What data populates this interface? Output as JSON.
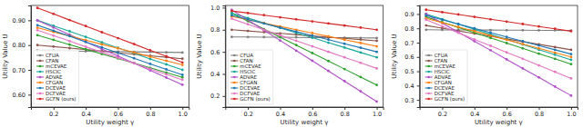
{
  "chart_data": [
    {
      "type": "line",
      "x_label": "Utility weight γ",
      "y_label": "Utility Value U",
      "x": [
        0.1,
        0.2,
        0.3,
        0.4,
        0.5,
        0.6,
        0.7,
        0.8,
        0.9,
        1.0
      ],
      "xlim": [
        0.06,
        1.04
      ],
      "xticks": [
        0.2,
        0.4,
        0.6,
        0.8,
        {
          "value": 1.0,
          "label": "1.0"
        }
      ],
      "ylim": [
        0.55,
        0.96
      ],
      "yticks": [
        {
          "value": 0.6,
          "label": "0.60"
        },
        {
          "value": 0.7,
          "label": "0.70"
        },
        {
          "value": 0.8,
          "label": "0.80"
        },
        {
          "value": 0.9,
          "label": "0.90"
        }
      ],
      "grid": false,
      "legend": "lower left",
      "series": [
        {
          "name": "CFUA",
          "color": "#7f7f7f",
          "marker": "o",
          "values": [
            0.778,
            0.777,
            0.776,
            0.775,
            0.774,
            0.774,
            0.773,
            0.772,
            0.771,
            0.77
          ]
        },
        {
          "name": "CFAN",
          "color": "#8c564b",
          "marker": "o",
          "values": [
            0.8,
            0.794,
            0.788,
            0.782,
            0.776,
            0.769,
            0.763,
            0.757,
            0.751,
            0.745
          ]
        },
        {
          "name": "mCEVAE",
          "color": "#2ca02c",
          "marker": "o",
          "values": [
            0.84,
            0.821,
            0.802,
            0.783,
            0.764,
            0.746,
            0.727,
            0.708,
            0.689,
            0.67
          ]
        },
        {
          "name": "HSCIC",
          "color": "#17a89a",
          "marker": "o",
          "values": [
            0.9,
            0.878,
            0.856,
            0.833,
            0.811,
            0.789,
            0.767,
            0.744,
            0.722,
            0.7
          ]
        },
        {
          "name": "ADVAE",
          "color": "#b04fc9",
          "marker": "o",
          "values": [
            0.9,
            0.871,
            0.842,
            0.813,
            0.784,
            0.756,
            0.727,
            0.698,
            0.669,
            0.64
          ]
        },
        {
          "name": "CFGAN",
          "color": "#ff7f0e",
          "marker": "o",
          "values": [
            0.87,
            0.853,
            0.837,
            0.82,
            0.803,
            0.787,
            0.77,
            0.753,
            0.737,
            0.72
          ]
        },
        {
          "name": "DCEVAE",
          "color": "#1f77b4",
          "marker": "o",
          "values": [
            0.88,
            0.858,
            0.836,
            0.813,
            0.791,
            0.769,
            0.747,
            0.724,
            0.702,
            0.68
          ]
        },
        {
          "name": "DCFVAE",
          "color": "#e377c2",
          "marker": "o",
          "values": [
            0.86,
            0.838,
            0.816,
            0.793,
            0.771,
            0.749,
            0.727,
            0.704,
            0.682,
            0.66
          ]
        },
        {
          "name": "GCFN (ours)",
          "color": "#d62728",
          "marker": "o",
          "values": [
            0.95,
            0.926,
            0.901,
            0.877,
            0.852,
            0.828,
            0.804,
            0.779,
            0.755,
            0.73
          ]
        }
      ]
    },
    {
      "type": "line",
      "x_label": "Utility weight γ",
      "y_label": "Utility Value U",
      "x": [
        0.1,
        0.2,
        0.3,
        0.4,
        0.5,
        0.6,
        0.7,
        0.8,
        0.9,
        1.0
      ],
      "xlim": [
        0.06,
        1.04
      ],
      "xticks": [
        0.2,
        0.4,
        0.6,
        0.8,
        {
          "value": 1.0,
          "label": "1.0"
        }
      ],
      "ylim": [
        0.1,
        1.02
      ],
      "yticks": [
        0.2,
        0.4,
        0.6,
        0.8,
        {
          "value": 1.0,
          "label": "1.0"
        }
      ],
      "grid": false,
      "legend": "lower left",
      "series": [
        {
          "name": "CFUA",
          "color": "#7f7f7f",
          "marker": "o",
          "values": [
            0.735,
            0.734,
            0.733,
            0.732,
            0.731,
            0.729,
            0.728,
            0.727,
            0.726,
            0.725
          ]
        },
        {
          "name": "CFAN",
          "color": "#8c564b",
          "marker": "o",
          "values": [
            0.8,
            0.789,
            0.778,
            0.767,
            0.756,
            0.744,
            0.733,
            0.722,
            0.711,
            0.7
          ]
        },
        {
          "name": "mCEVAE",
          "color": "#2ca02c",
          "marker": "o",
          "values": [
            0.95,
            0.878,
            0.806,
            0.733,
            0.661,
            0.589,
            0.517,
            0.444,
            0.372,
            0.3
          ]
        },
        {
          "name": "HSCIC",
          "color": "#17a89a",
          "marker": "o",
          "values": [
            0.95,
            0.906,
            0.861,
            0.817,
            0.772,
            0.728,
            0.683,
            0.639,
            0.594,
            0.55
          ]
        },
        {
          "name": "ADVAE",
          "color": "#b04fc9",
          "marker": "o",
          "values": [
            0.98,
            0.888,
            0.796,
            0.703,
            0.611,
            0.519,
            0.427,
            0.334,
            0.242,
            0.15
          ]
        },
        {
          "name": "CFGAN",
          "color": "#ff7f0e",
          "marker": "o",
          "values": [
            0.92,
            0.89,
            0.86,
            0.83,
            0.8,
            0.77,
            0.74,
            0.71,
            0.68,
            0.65
          ]
        },
        {
          "name": "DCEVAE",
          "color": "#1f77b4",
          "marker": "o",
          "values": [
            0.93,
            0.893,
            0.857,
            0.82,
            0.783,
            0.747,
            0.71,
            0.673,
            0.637,
            0.6
          ]
        },
        {
          "name": "DCFVAE",
          "color": "#e377c2",
          "marker": "o",
          "values": [
            0.9,
            0.85,
            0.8,
            0.75,
            0.7,
            0.65,
            0.6,
            0.55,
            0.5,
            0.45
          ]
        },
        {
          "name": "GCFN (ours)",
          "color": "#d62728",
          "marker": "o",
          "values": [
            0.97,
            0.951,
            0.932,
            0.913,
            0.894,
            0.876,
            0.857,
            0.838,
            0.819,
            0.8
          ]
        }
      ]
    },
    {
      "type": "line",
      "x_label": "Utility weight γ",
      "y_label": "Utility Value U",
      "x": [
        0.1,
        0.2,
        0.3,
        0.4,
        0.5,
        0.6,
        0.7,
        0.8,
        0.9,
        1.0
      ],
      "xlim": [
        0.06,
        1.04
      ],
      "xticks": [
        0.2,
        0.4,
        0.6,
        0.8,
        {
          "value": 1.0,
          "label": "1.0"
        }
      ],
      "ylim": [
        0.25,
        0.96
      ],
      "yticks": [
        0.3,
        0.4,
        0.5,
        0.6,
        0.7,
        0.8,
        0.9
      ],
      "grid": false,
      "legend": "lower left",
      "series": [
        {
          "name": "CFUA",
          "color": "#7f7f7f",
          "marker": "o",
          "values": [
            0.79,
            0.789,
            0.789,
            0.788,
            0.788,
            0.787,
            0.787,
            0.786,
            0.786,
            0.785
          ]
        },
        {
          "name": "CFAN",
          "color": "#8c564b",
          "marker": "o",
          "values": [
            0.82,
            0.801,
            0.782,
            0.763,
            0.744,
            0.726,
            0.707,
            0.688,
            0.669,
            0.65
          ]
        },
        {
          "name": "mCEVAE",
          "color": "#2ca02c",
          "marker": "o",
          "values": [
            0.88,
            0.843,
            0.807,
            0.77,
            0.733,
            0.697,
            0.66,
            0.623,
            0.587,
            0.55
          ]
        },
        {
          "name": "HSCIC",
          "color": "#17a89a",
          "marker": "o",
          "values": [
            0.9,
            0.864,
            0.829,
            0.793,
            0.758,
            0.722,
            0.687,
            0.651,
            0.616,
            0.58
          ]
        },
        {
          "name": "ADVAE",
          "color": "#b04fc9",
          "marker": "o",
          "values": [
            0.9,
            0.837,
            0.773,
            0.71,
            0.647,
            0.583,
            0.52,
            0.457,
            0.393,
            0.33
          ]
        },
        {
          "name": "CFGAN",
          "color": "#ff7f0e",
          "marker": "o",
          "values": [
            0.87,
            0.84,
            0.81,
            0.78,
            0.75,
            0.72,
            0.69,
            0.66,
            0.63,
            0.6
          ]
        },
        {
          "name": "DCEVAE",
          "color": "#1f77b4",
          "marker": "o",
          "values": [
            0.89,
            0.86,
            0.83,
            0.8,
            0.77,
            0.74,
            0.71,
            0.68,
            0.65,
            0.62
          ]
        },
        {
          "name": "DCFVAE",
          "color": "#e377c2",
          "marker": "o",
          "values": [
            0.86,
            0.814,
            0.769,
            0.723,
            0.678,
            0.632,
            0.587,
            0.541,
            0.496,
            0.45
          ]
        },
        {
          "name": "GCFN (ours)",
          "color": "#d62728",
          "marker": "o",
          "values": [
            0.93,
            0.913,
            0.897,
            0.88,
            0.863,
            0.847,
            0.83,
            0.813,
            0.797,
            0.78
          ]
        }
      ]
    }
  ]
}
